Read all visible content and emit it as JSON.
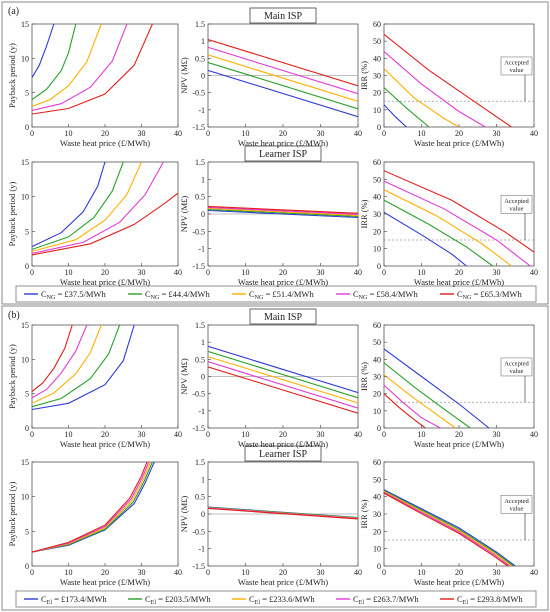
{
  "figure": {
    "panel_a_label": "(a)",
    "panel_b_label": "(b)",
    "main_label": "Main ISP",
    "learner_label": "Learner ISP",
    "xlabel": "Waste heat price (£/MWh)",
    "ylabel_payback": "Payback period (y)",
    "ylabel_npv": "NPV (M£)",
    "ylabel_irr": "IRR (%)",
    "accepted_value_text": "Accepted value",
    "colors": [
      "#2f3bd6",
      "#2aa02a",
      "#ffb000",
      "#e23bd6",
      "#e0201c"
    ]
  },
  "legends": {
    "a": {
      "subscript": "NG",
      "entries": [
        {
          "label": "C",
          "sub": "NG",
          "value": " = £37.5/MWh",
          "color": "#2f3bd6"
        },
        {
          "label": "C",
          "sub": "NG",
          "value": " = £44.4/MWh",
          "color": "#2aa02a"
        },
        {
          "label": "C",
          "sub": "NG",
          "value": " = £51.4/MWh",
          "color": "#ffb000"
        },
        {
          "label": "C",
          "sub": "NG",
          "value": " = £58.4/MWh",
          "color": "#e23bd6"
        },
        {
          "label": "C",
          "sub": "NG",
          "value": " = £65.3/MWh",
          "color": "#e0201c"
        }
      ]
    },
    "b": {
      "subscript": "El",
      "entries": [
        {
          "label": "C",
          "sub": "El",
          "value": " = £173.4/MWh",
          "color": "#2f3bd6"
        },
        {
          "label": "C",
          "sub": "El",
          "value": " = £203.5/MWh",
          "color": "#2aa02a"
        },
        {
          "label": "C",
          "sub": "El",
          "value": " = £233.6/MWh",
          "color": "#ffb000"
        },
        {
          "label": "C",
          "sub": "El",
          "value": " = £263.7/MWh",
          "color": "#e23bd6"
        },
        {
          "label": "C",
          "sub": "El",
          "value": " = £293.8/MWh",
          "color": "#e0201c"
        }
      ]
    }
  },
  "chart_data": [
    {
      "id": "a-main-payback",
      "type": "line",
      "xlabel": "Waste heat price (£/MWh)",
      "ylabel": "Payback period (y)",
      "xlim": [
        0,
        40
      ],
      "ylim": [
        0,
        15
      ],
      "xticks": [
        0,
        10,
        20,
        30,
        40
      ],
      "yticks": [
        0,
        5,
        10,
        15
      ],
      "series": [
        {
          "x": [
            0,
            2,
            4,
            6
          ],
          "y": [
            7.2,
            9.0,
            11.8,
            15
          ]
        },
        {
          "x": [
            0,
            4,
            8,
            10,
            12
          ],
          "y": [
            4.0,
            5.5,
            8.2,
            10.8,
            15
          ]
        },
        {
          "x": [
            0,
            5,
            10,
            15,
            19
          ],
          "y": [
            3.0,
            4.0,
            6.0,
            9.5,
            15
          ]
        },
        {
          "x": [
            0,
            8,
            16,
            22,
            26
          ],
          "y": [
            2.4,
            3.4,
            5.8,
            9.6,
            15
          ]
        },
        {
          "x": [
            0,
            10,
            20,
            28,
            33
          ],
          "y": [
            1.9,
            2.7,
            4.8,
            9.0,
            15
          ]
        }
      ]
    },
    {
      "id": "a-main-npv",
      "type": "line",
      "xlabel": "Waste heat price (£/MWh)",
      "ylabel": "NPV (M£)",
      "xlim": [
        0,
        40
      ],
      "ylim": [
        -1.5,
        1.5
      ],
      "xticks": [
        0,
        10,
        20,
        30,
        40
      ],
      "yticks": [
        -1.5,
        -1,
        -0.5,
        0,
        0.5,
        1,
        1.5
      ],
      "hline": 0,
      "series": [
        {
          "x": [
            0,
            40
          ],
          "y": [
            0.15,
            -1.2
          ]
        },
        {
          "x": [
            0,
            40
          ],
          "y": [
            0.38,
            -0.97
          ]
        },
        {
          "x": [
            0,
            40
          ],
          "y": [
            0.6,
            -0.75
          ]
        },
        {
          "x": [
            0,
            40
          ],
          "y": [
            0.82,
            -0.53
          ]
        },
        {
          "x": [
            0,
            40
          ],
          "y": [
            1.05,
            -0.3
          ]
        }
      ]
    },
    {
      "id": "a-main-irr",
      "type": "line",
      "xlabel": "Waste heat price (£/MWh)",
      "ylabel": "IRR (%)",
      "xlim": [
        0,
        40
      ],
      "ylim": [
        0,
        60
      ],
      "xticks": [
        0,
        10,
        20,
        30,
        40
      ],
      "yticks": [
        0,
        10,
        20,
        30,
        40,
        50,
        60
      ],
      "accepted": 15,
      "series": [
        {
          "x": [
            0,
            3,
            6
          ],
          "y": [
            13,
            6,
            0
          ]
        },
        {
          "x": [
            0,
            6,
            12
          ],
          "y": [
            23,
            11,
            0
          ]
        },
        {
          "x": [
            0,
            8,
            16,
            20
          ],
          "y": [
            34,
            17,
            5,
            0
          ]
        },
        {
          "x": [
            0,
            10,
            20,
            27
          ],
          "y": [
            44,
            25,
            9,
            0
          ]
        },
        {
          "x": [
            0,
            12,
            24,
            34
          ],
          "y": [
            54,
            33,
            15,
            0
          ]
        }
      ]
    },
    {
      "id": "a-learner-payback",
      "type": "line",
      "xlabel": "Waste heat price (£/MWh)",
      "ylabel": "Payback period (y)",
      "xlim": [
        0,
        40
      ],
      "ylim": [
        0,
        15
      ],
      "xticks": [
        0,
        10,
        20,
        30,
        40
      ],
      "yticks": [
        0,
        5,
        10,
        15
      ],
      "series": [
        {
          "x": [
            0,
            8,
            14,
            18,
            20
          ],
          "y": [
            2.8,
            4.8,
            7.8,
            11.5,
            15
          ]
        },
        {
          "x": [
            0,
            10,
            17,
            22,
            25
          ],
          "y": [
            2.4,
            4.2,
            7.0,
            10.8,
            15
          ]
        },
        {
          "x": [
            0,
            12,
            20,
            26,
            30
          ],
          "y": [
            2.1,
            3.8,
            6.6,
            10.3,
            15
          ]
        },
        {
          "x": [
            0,
            14,
            24,
            31,
            36
          ],
          "y": [
            1.8,
            3.4,
            6.3,
            10.3,
            15
          ]
        },
        {
          "x": [
            0,
            16,
            28,
            36,
            40
          ],
          "y": [
            1.6,
            3.2,
            6.0,
            8.9,
            10.5
          ]
        }
      ]
    },
    {
      "id": "a-learner-npv",
      "type": "line",
      "xlabel": "Waste heat price (£/MWh)",
      "ylabel": "NPV (M£)",
      "xlim": [
        0,
        40
      ],
      "ylim": [
        -1.5,
        1.5
      ],
      "xticks": [
        0,
        10,
        20,
        30,
        40
      ],
      "yticks": [
        -1.5,
        -1,
        -0.5,
        0,
        0.5,
        1,
        1.5
      ],
      "hline": 0,
      "series": [
        {
          "x": [
            0,
            40
          ],
          "y": [
            0.1,
            -0.1
          ]
        },
        {
          "x": [
            0,
            40
          ],
          "y": [
            0.13,
            -0.07
          ]
        },
        {
          "x": [
            0,
            40
          ],
          "y": [
            0.16,
            -0.04
          ]
        },
        {
          "x": [
            0,
            40
          ],
          "y": [
            0.19,
            -0.01
          ]
        },
        {
          "x": [
            0,
            40
          ],
          "y": [
            0.22,
            0.02
          ]
        }
      ]
    },
    {
      "id": "a-learner-irr",
      "type": "line",
      "xlabel": "Waste heat price (£/MWh)",
      "ylabel": "IRR (%)",
      "xlim": [
        0,
        40
      ],
      "ylim": [
        0,
        60
      ],
      "xticks": [
        0,
        10,
        20,
        30,
        40
      ],
      "yticks": [
        0,
        10,
        20,
        30,
        40,
        50,
        60
      ],
      "accepted": 15,
      "series": [
        {
          "x": [
            0,
            10,
            18,
            22
          ],
          "y": [
            31,
            18,
            7,
            0
          ]
        },
        {
          "x": [
            0,
            12,
            22,
            29
          ],
          "y": [
            38,
            24,
            11,
            0
          ]
        },
        {
          "x": [
            0,
            14,
            26,
            34
          ],
          "y": [
            44,
            29,
            13,
            0
          ]
        },
        {
          "x": [
            0,
            16,
            30,
            39
          ],
          "y": [
            49,
            33,
            15,
            0
          ]
        },
        {
          "x": [
            0,
            18,
            32,
            40
          ],
          "y": [
            55,
            38,
            20,
            8
          ]
        }
      ]
    },
    {
      "id": "b-main-payback",
      "type": "line",
      "xlabel": "Waste heat price (£/MWh)",
      "ylabel": "Payback period (y)",
      "xlim": [
        0,
        40
      ],
      "ylim": [
        0,
        15
      ],
      "xticks": [
        0,
        10,
        20,
        30,
        40
      ],
      "yticks": [
        0,
        5,
        10,
        15
      ],
      "series": [
        {
          "x": [
            0,
            10,
            20,
            25,
            28
          ],
          "y": [
            2.7,
            3.6,
            6.3,
            9.8,
            15
          ]
        },
        {
          "x": [
            0,
            8,
            16,
            21,
            24
          ],
          "y": [
            3.1,
            4.3,
            7.2,
            10.8,
            15
          ]
        },
        {
          "x": [
            0,
            6,
            12,
            16,
            19
          ],
          "y": [
            3.6,
            5.1,
            7.9,
            11.0,
            15
          ]
        },
        {
          "x": [
            0,
            4,
            8,
            12,
            15
          ],
          "y": [
            4.4,
            5.6,
            8.0,
            11.2,
            15
          ]
        },
        {
          "x": [
            0,
            3,
            6,
            9,
            11
          ],
          "y": [
            5.3,
            6.6,
            8.7,
            11.6,
            15
          ]
        }
      ]
    },
    {
      "id": "b-main-npv",
      "type": "line",
      "xlabel": "Waste heat price (£/MWh)",
      "ylabel": "NPV (M£)",
      "xlim": [
        0,
        40
      ],
      "ylim": [
        -1.5,
        1.5
      ],
      "xticks": [
        0,
        10,
        20,
        30,
        40
      ],
      "yticks": [
        -1.5,
        -1,
        -0.5,
        0,
        0.5,
        1,
        1.5
      ],
      "hline": 0,
      "series": [
        {
          "x": [
            0,
            40
          ],
          "y": [
            0.88,
            -0.47
          ]
        },
        {
          "x": [
            0,
            40
          ],
          "y": [
            0.73,
            -0.62
          ]
        },
        {
          "x": [
            0,
            40
          ],
          "y": [
            0.58,
            -0.77
          ]
        },
        {
          "x": [
            0,
            40
          ],
          "y": [
            0.43,
            -0.92
          ]
        },
        {
          "x": [
            0,
            40
          ],
          "y": [
            0.28,
            -1.07
          ]
        }
      ]
    },
    {
      "id": "b-main-irr",
      "type": "line",
      "xlabel": "Waste heat price (£/MWh)",
      "ylabel": "IRR (%)",
      "xlim": [
        0,
        40
      ],
      "ylim": [
        0,
        60
      ],
      "xticks": [
        0,
        10,
        20,
        30,
        40
      ],
      "yticks": [
        0,
        10,
        20,
        30,
        40,
        50,
        60
      ],
      "accepted": 15,
      "series": [
        {
          "x": [
            0,
            10,
            20,
            28
          ],
          "y": [
            46,
            30,
            14,
            0
          ]
        },
        {
          "x": [
            0,
            8,
            16,
            23
          ],
          "y": [
            38,
            24,
            11,
            0
          ]
        },
        {
          "x": [
            0,
            7,
            14,
            19
          ],
          "y": [
            31,
            19,
            8,
            0
          ]
        },
        {
          "x": [
            0,
            5,
            10,
            15
          ],
          "y": [
            25,
            15,
            6,
            0
          ]
        },
        {
          "x": [
            0,
            4,
            8,
            11
          ],
          "y": [
            20,
            12,
            5,
            0
          ]
        }
      ]
    },
    {
      "id": "b-learner-payback",
      "type": "line",
      "xlabel": "Waste heat price (£/MWh)",
      "ylabel": "Payback period (y)",
      "xlim": [
        0,
        40
      ],
      "ylim": [
        0,
        15
      ],
      "xticks": [
        0,
        10,
        20,
        30,
        40
      ],
      "yticks": [
        0,
        5,
        10,
        15
      ],
      "series": [
        {
          "x": [
            0,
            10,
            20,
            28,
            31,
            33.5
          ],
          "y": [
            2.0,
            3.0,
            5.2,
            9.0,
            12.0,
            15
          ]
        },
        {
          "x": [
            0,
            10,
            20,
            27.7,
            30.7,
            33
          ],
          "y": [
            2.0,
            3.1,
            5.3,
            9.2,
            12.2,
            15
          ]
        },
        {
          "x": [
            0,
            10,
            20,
            27.4,
            30.4,
            32.5
          ],
          "y": [
            2.0,
            3.2,
            5.5,
            9.4,
            12.4,
            15
          ]
        },
        {
          "x": [
            0,
            10,
            20,
            27.1,
            30.1,
            32
          ],
          "y": [
            2.0,
            3.3,
            5.7,
            9.6,
            12.6,
            15
          ]
        },
        {
          "x": [
            0,
            10,
            20,
            26.8,
            29.8,
            31.5
          ],
          "y": [
            2.0,
            3.4,
            5.9,
            9.8,
            12.8,
            15
          ]
        }
      ]
    },
    {
      "id": "b-learner-npv",
      "type": "line",
      "xlabel": "Waste heat price (£/MWh)",
      "ylabel": "NPV (M£)",
      "xlim": [
        0,
        40
      ],
      "ylim": [
        -1.5,
        1.5
      ],
      "xticks": [
        0,
        10,
        20,
        30,
        40
      ],
      "yticks": [
        -1.5,
        -1,
        -0.5,
        0,
        0.5,
        1,
        1.5
      ],
      "hline": 0,
      "series": [
        {
          "x": [
            0,
            40
          ],
          "y": [
            0.2,
            -0.1
          ]
        },
        {
          "x": [
            0,
            40
          ],
          "y": [
            0.19,
            -0.11
          ]
        },
        {
          "x": [
            0,
            40
          ],
          "y": [
            0.18,
            -0.12
          ]
        },
        {
          "x": [
            0,
            40
          ],
          "y": [
            0.17,
            -0.13
          ]
        },
        {
          "x": [
            0,
            40
          ],
          "y": [
            0.16,
            -0.14
          ]
        }
      ]
    },
    {
      "id": "b-learner-irr",
      "type": "line",
      "xlabel": "Waste heat price (£/MWh)",
      "ylabel": "IRR (%)",
      "xlim": [
        0,
        40
      ],
      "ylim": [
        0,
        60
      ],
      "xticks": [
        0,
        10,
        20,
        30,
        40
      ],
      "yticks": [
        0,
        10,
        20,
        30,
        40,
        50,
        60
      ],
      "accepted": 15,
      "series": [
        {
          "x": [
            0,
            10,
            20,
            30,
            35
          ],
          "y": [
            44,
            33,
            22,
            8,
            0
          ]
        },
        {
          "x": [
            0,
            10,
            20,
            30,
            34.5
          ],
          "y": [
            43.5,
            32.3,
            21.2,
            7.3,
            0
          ]
        },
        {
          "x": [
            0,
            10,
            20,
            30,
            34
          ],
          "y": [
            43,
            31.6,
            20.4,
            6.6,
            0
          ]
        },
        {
          "x": [
            0,
            10,
            20,
            29.5,
            33.5
          ],
          "y": [
            42.5,
            30.9,
            19.6,
            6.4,
            0
          ]
        },
        {
          "x": [
            0,
            10,
            20,
            29,
            33
          ],
          "y": [
            42,
            30.2,
            18.8,
            6.2,
            0
          ]
        }
      ]
    }
  ]
}
